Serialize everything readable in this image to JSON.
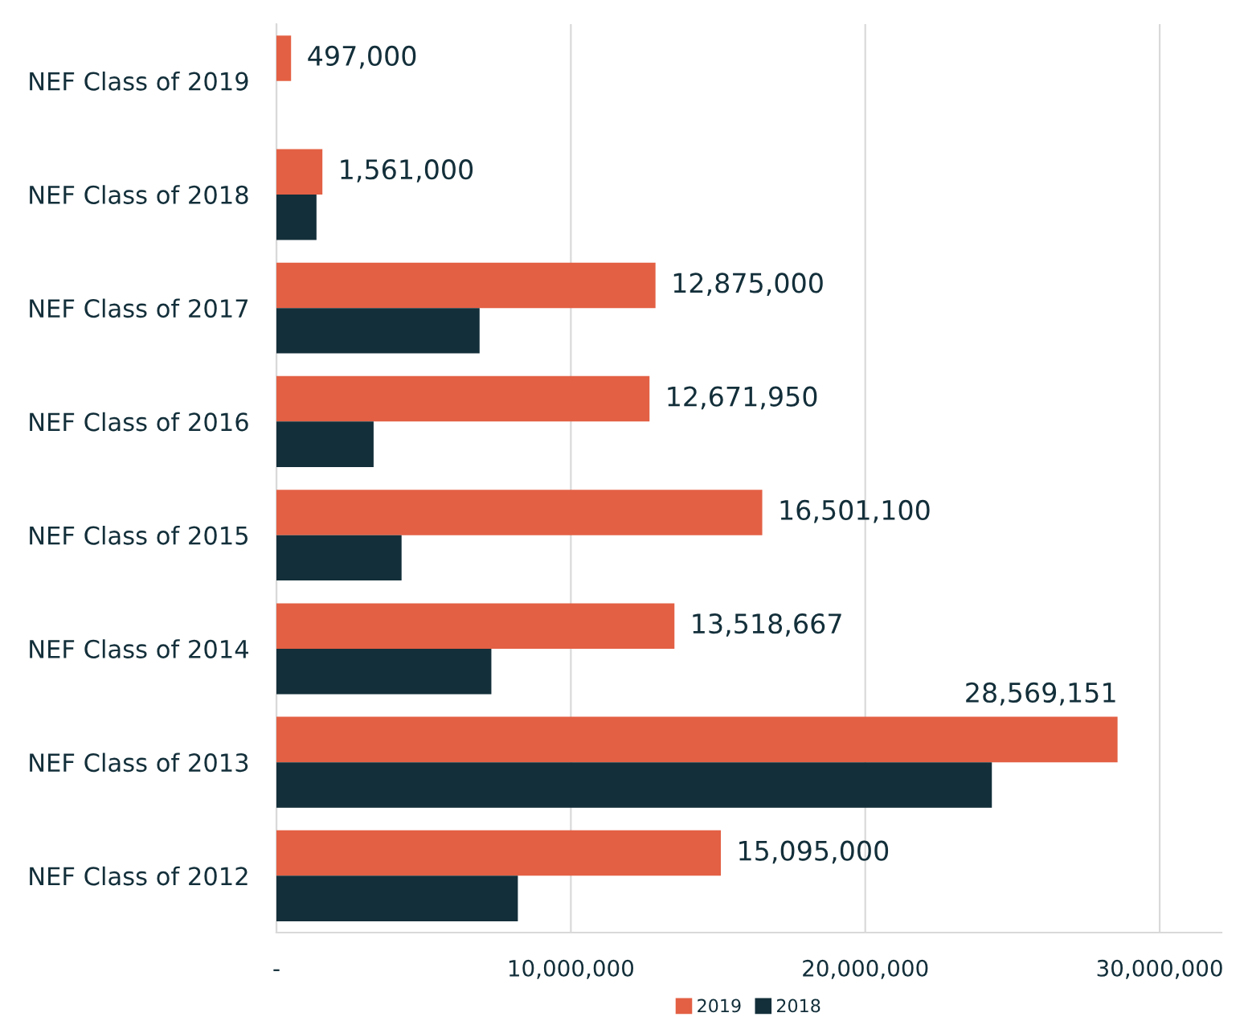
{
  "chart_data": {
    "type": "bar",
    "orientation": "horizontal",
    "categories": [
      "NEF Class of 2019",
      "NEF Class of 2018",
      "NEF Class of 2017",
      "NEF Class of 2016",
      "NEF Class of 2015",
      "NEF Class of 2014",
      "NEF Class of 2013",
      "NEF Class of 2012"
    ],
    "series": [
      {
        "name": "2019",
        "color": "#e36044",
        "values": [
          497000,
          1561000,
          12875000,
          12671950,
          16501100,
          13518667,
          28569151,
          15095000
        ],
        "value_labels": [
          "497,000",
          "1,561,000",
          "12,875,000",
          "12,671,950",
          "16,501,100",
          "13,518,667",
          "28,569,151",
          "15,095,000"
        ]
      },
      {
        "name": "2018",
        "color": "#132f3a",
        "values": [
          null,
          1360000,
          6900000,
          3300000,
          4250000,
          7300000,
          24300000,
          8200000
        ]
      }
    ],
    "xlim": [
      0,
      32100000
    ],
    "xticks": [
      {
        "value": 0,
        "label": "-"
      },
      {
        "value": 10000000,
        "label": "10,000,000"
      },
      {
        "value": 20000000,
        "label": "20,000,000"
      },
      {
        "value": 30000000,
        "label": "30,000,000"
      }
    ],
    "grid": "x",
    "legend": "bottom"
  }
}
